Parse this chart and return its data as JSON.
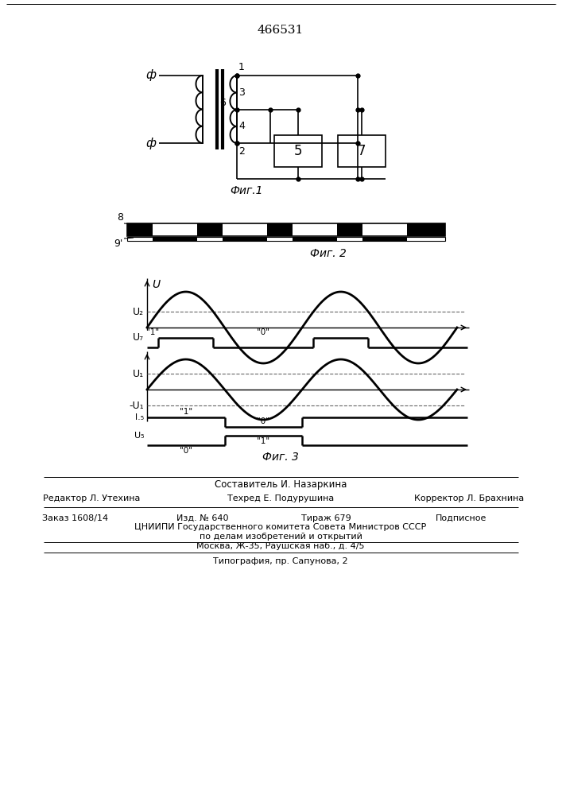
{
  "patent_number": "466531",
  "fig1_label": "Фиг.1",
  "fig2_label": "Фиг. 2",
  "fig3_label": "Фиг. 3",
  "background_color": "#ffffff",
  "line_color": "#000000",
  "text_color": "#000000",
  "footer_sestavitel": "Составитель И. Назаркина",
  "footer_editor": "Редактор Л. Утехина",
  "footer_tehred": "Техред Е. Подурушина",
  "footer_korrektor": "Корректор Л. Брахнина",
  "footer_zakaz": "Заказ 1608/14",
  "footer_izd": "Изд. № 640",
  "footer_tirazh": "Тираж 679",
  "footer_podpisnoe": "Подписное",
  "footer_tsniip1": "ЦНИИПИ Государственного комитета Совета Министров СССР",
  "footer_tsniip2": "по делам изобретений и открытий",
  "footer_moskva": "Москва, Ж-35, Раушская наб., д. 4/5",
  "footer_tipografiya": "Типография, пр. Сапунова, 2"
}
